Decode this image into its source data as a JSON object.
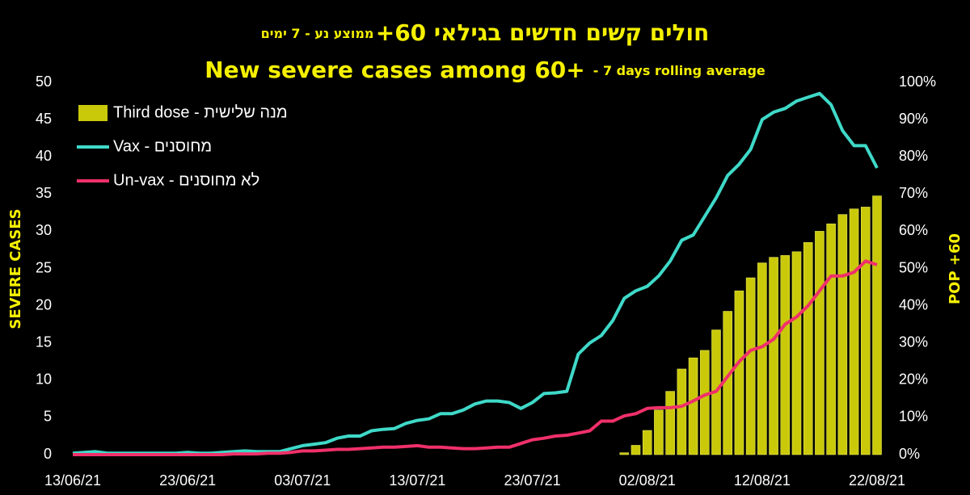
{
  "chart_data": {
    "type": "combo",
    "title": "חולים קשים חדשים בגילאי 60+",
    "title_note": "- ממוצע נע - 7 ימים",
    "subtitle": "New severe cases among 60+",
    "subtitle_note": "- 7 days rolling average",
    "y_label": "SEVERE CASES",
    "y2_label": "POP +60",
    "categories": [
      "13/06/21",
      null,
      null,
      null,
      null,
      null,
      null,
      null,
      null,
      null,
      "23/06/21",
      null,
      null,
      null,
      null,
      null,
      null,
      null,
      null,
      null,
      "03/07/21",
      null,
      null,
      null,
      null,
      null,
      null,
      null,
      null,
      null,
      "13/07/21",
      null,
      null,
      null,
      null,
      null,
      null,
      null,
      null,
      null,
      "23/07/21",
      null,
      null,
      null,
      null,
      null,
      null,
      null,
      null,
      null,
      "02/08/21",
      null,
      null,
      null,
      null,
      null,
      null,
      null,
      null,
      null,
      "12/08/21",
      null,
      null,
      null,
      null,
      null,
      null,
      null,
      null,
      null,
      "22/08/21"
    ],
    "ylim": [
      0,
      50
    ],
    "yticks": [
      0,
      5,
      10,
      15,
      20,
      25,
      30,
      35,
      40,
      45,
      50
    ],
    "y2lim": [
      0,
      100
    ],
    "y2ticks": [
      {
        "value": 0,
        "label": "0%"
      },
      {
        "value": 10,
        "label": "10%"
      },
      {
        "value": 20,
        "label": "20%"
      },
      {
        "value": 30,
        "label": "30%"
      },
      {
        "value": 40,
        "label": "40%"
      },
      {
        "value": 50,
        "label": "50%"
      },
      {
        "value": 60,
        "label": "60%"
      },
      {
        "value": 70,
        "label": "70%"
      },
      {
        "value": 80,
        "label": "80%"
      },
      {
        "value": 90,
        "label": "90%"
      },
      {
        "value": 100,
        "label": "100%"
      }
    ],
    "legend": "top-left",
    "series": [
      {
        "name": "Third dose - מנה שלישית",
        "type": "bar",
        "axis": "y2",
        "color": "#c9c90a",
        "values": [
          null,
          null,
          null,
          null,
          null,
          null,
          null,
          null,
          null,
          null,
          null,
          null,
          null,
          null,
          null,
          null,
          null,
          null,
          null,
          null,
          null,
          null,
          null,
          null,
          null,
          null,
          null,
          null,
          null,
          null,
          null,
          null,
          null,
          null,
          null,
          null,
          null,
          null,
          null,
          null,
          null,
          null,
          null,
          null,
          null,
          null,
          null,
          null,
          0.5,
          2.5,
          6.5,
          12,
          17,
          23,
          26,
          28,
          33.5,
          38.5,
          44,
          47.5,
          51.5,
          53,
          53.5,
          54.5,
          57,
          60,
          62,
          64.5,
          66,
          66.5,
          69.5
        ]
      },
      {
        "name": "Vax - מחוסנים",
        "type": "line",
        "color": "#3fd9c8",
        "values": [
          0.2,
          0.3,
          0.4,
          0.2,
          0.2,
          0.2,
          0.2,
          0.2,
          0.2,
          0.2,
          0.3,
          0.2,
          0.2,
          0.3,
          0.4,
          0.5,
          0.4,
          0.4,
          0.4,
          0.8,
          1.2,
          1.4,
          1.6,
          2.2,
          2.5,
          2.5,
          3.2,
          3.4,
          3.5,
          4.2,
          4.6,
          4.8,
          5.5,
          5.5,
          6.0,
          6.8,
          7.2,
          7.2,
          7.0,
          6.2,
          7.0,
          8.2,
          8.3,
          8.5,
          13.5,
          15,
          16,
          18,
          21,
          22,
          22.6,
          24,
          26,
          28.8,
          29.5,
          32,
          34.5,
          37.5,
          39,
          41,
          45,
          46,
          46.5,
          47.5,
          48,
          48.5,
          47,
          43.5,
          41.5,
          41.5,
          38.5
        ]
      },
      {
        "name": "Un-vax - לא מחוסנים",
        "type": "line",
        "color": "#f0306a",
        "values": [
          0,
          0,
          0,
          0,
          0,
          0,
          0,
          0,
          0,
          0,
          0,
          0,
          0,
          0,
          0.1,
          0.1,
          0.1,
          0.2,
          0.2,
          0.3,
          0.5,
          0.5,
          0.6,
          0.7,
          0.7,
          0.8,
          0.9,
          1.0,
          1.0,
          1.1,
          1.2,
          1.0,
          1.0,
          0.9,
          0.8,
          0.8,
          0.9,
          1.0,
          1.0,
          1.5,
          2.0,
          2.2,
          2.5,
          2.6,
          2.9,
          3.2,
          4.5,
          4.5,
          5.2,
          5.5,
          6.2,
          6.3,
          6.3,
          6.5,
          7.2,
          8.0,
          8.5,
          10.5,
          12.5,
          14.0,
          14.5,
          15.5,
          17.5,
          18.5,
          20,
          22,
          24,
          24,
          24.5,
          26,
          25.5
        ]
      }
    ]
  }
}
